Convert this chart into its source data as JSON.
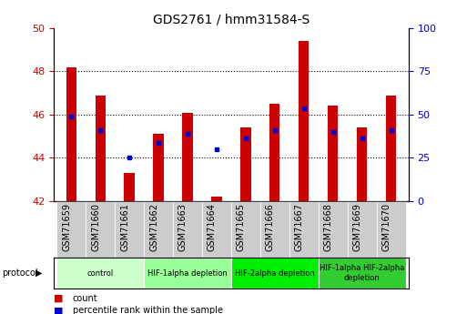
{
  "title": "GDS2761 / hmm31584-S",
  "samples": [
    "GSM71659",
    "GSM71660",
    "GSM71661",
    "GSM71662",
    "GSM71663",
    "GSM71664",
    "GSM71665",
    "GSM71666",
    "GSM71667",
    "GSM71668",
    "GSM71669",
    "GSM71670"
  ],
  "bar_values": [
    48.2,
    46.9,
    43.3,
    45.1,
    46.1,
    42.2,
    45.4,
    46.5,
    49.4,
    46.4,
    45.4,
    46.9
  ],
  "bar_base": 42.0,
  "dot_values": [
    45.9,
    45.3,
    44.0,
    44.7,
    45.1,
    44.4,
    44.9,
    45.3,
    46.3,
    45.2,
    44.9,
    45.3
  ],
  "ylim_left": [
    42,
    50
  ],
  "ylim_right": [
    0,
    100
  ],
  "yticks_left": [
    42,
    44,
    46,
    48,
    50
  ],
  "yticks_right": [
    0,
    25,
    50,
    75,
    100
  ],
  "bar_color": "#cc0000",
  "dot_color": "#0000cc",
  "bg_color": "#ffffff",
  "tick_bg_color": "#cccccc",
  "protocol_groups": [
    {
      "label": "control",
      "indices": [
        0,
        1,
        2
      ],
      "color": "#ccffcc"
    },
    {
      "label": "HIF-1alpha depletion",
      "indices": [
        3,
        4,
        5
      ],
      "color": "#99ff99"
    },
    {
      "label": "HIF-2alpha depletion",
      "indices": [
        6,
        7,
        8
      ],
      "color": "#00ee00"
    },
    {
      "label": "HIF-1alpha HIF-2alpha\ndepletion",
      "indices": [
        9,
        10,
        11
      ],
      "color": "#33cc33"
    }
  ],
  "tick_label_color_left": "#cc0000",
  "tick_label_color_right": "#0000cc",
  "legend_items": [
    {
      "label": "count",
      "color": "#cc0000"
    },
    {
      "label": "percentile rank within the sample",
      "color": "#0000cc"
    }
  ],
  "bar_width": 0.35,
  "gridlines_at": [
    44,
    46,
    48
  ],
  "protocol_label": "protocol"
}
